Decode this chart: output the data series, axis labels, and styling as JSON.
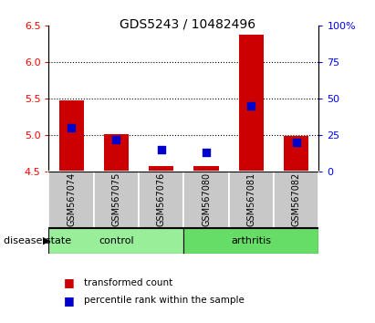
{
  "title": "GDS5243 / 10482496",
  "samples": [
    "GSM567074",
    "GSM567075",
    "GSM567076",
    "GSM567080",
    "GSM567081",
    "GSM567082"
  ],
  "groups": [
    "control",
    "control",
    "control",
    "arthritis",
    "arthritis",
    "arthritis"
  ],
  "transformed_count": [
    5.48,
    5.01,
    4.57,
    4.57,
    6.38,
    4.98
  ],
  "percentile_rank": [
    30,
    22,
    15,
    13,
    45,
    20
  ],
  "ylim_left": [
    4.5,
    6.5
  ],
  "ylim_right": [
    0,
    100
  ],
  "yticks_left": [
    4.5,
    5.0,
    5.5,
    6.0,
    6.5
  ],
  "yticks_right": [
    0,
    25,
    50,
    75,
    100
  ],
  "bar_color": "#cc0000",
  "dot_color": "#0000cc",
  "bar_bottom": 4.5,
  "control_color": "#99ee99",
  "arthritis_color": "#66dd66",
  "label_bg_color": "#c8c8c8",
  "dot_size": 28,
  "bar_width": 0.55,
  "legend_bar_label": "transformed count",
  "legend_dot_label": "percentile rank within the sample",
  "group_label": "disease state",
  "grid_dotted_at": [
    5.0,
    5.5,
    6.0
  ],
  "right_tick_labels": [
    "0",
    "25",
    "50",
    "75",
    "100%"
  ]
}
